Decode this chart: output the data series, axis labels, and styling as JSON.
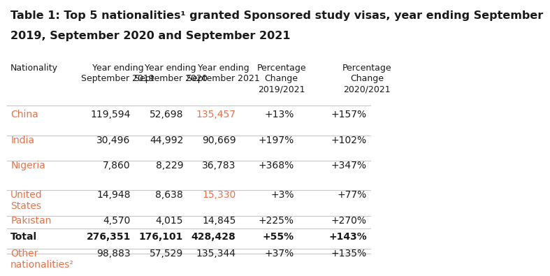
{
  "title_line1": "Table 1: Top 5 nationalities¹ granted Sponsored study visas, year ending September",
  "title_line2": "2019, September 2020 and September 2021",
  "hdr_texts": [
    "Nationality",
    "Year ending\nSeptember 2019",
    "Year ending\nSeptember 2020",
    "Year ending\nSeptember 2021",
    "Percentage\nChange\n2019/2021",
    "Percentage\nChange\n2020/2021"
  ],
  "rows": [
    {
      "nationality": "China",
      "sep2019": "119,594",
      "sep2020": "52,698",
      "sep2021": "135,457",
      "pct1921": "+13%",
      "pct2021": "+157%",
      "nat_color": "#e8734a",
      "sep2021_color": "#e8734a"
    },
    {
      "nationality": "India",
      "sep2019": "30,496",
      "sep2020": "44,992",
      "sep2021": "90,669",
      "pct1921": "+197%",
      "pct2021": "+102%",
      "nat_color": "#e8734a",
      "sep2021_color": "#1a1a1a"
    },
    {
      "nationality": "Nigeria",
      "sep2019": "7,860",
      "sep2020": "8,229",
      "sep2021": "36,783",
      "pct1921": "+368%",
      "pct2021": "+347%",
      "nat_color": "#e8734a",
      "sep2021_color": "#1a1a1a"
    },
    {
      "nationality": "United\nStates",
      "sep2019": "14,948",
      "sep2020": "8,638",
      "sep2021": "15,330",
      "pct1921": "+3%",
      "pct2021": "+77%",
      "nat_color": "#e8734a",
      "sep2021_color": "#e8734a"
    },
    {
      "nationality": "Pakistan",
      "sep2019": "4,570",
      "sep2020": "4,015",
      "sep2021": "14,845",
      "pct1921": "+225%",
      "pct2021": "+270%",
      "nat_color": "#e8734a",
      "sep2021_color": "#1a1a1a"
    },
    {
      "nationality": "Other\nnationalities²",
      "sep2019": "98,883",
      "sep2020": "57,529",
      "sep2021": "135,344",
      "pct1921": "+37%",
      "pct2021": "+135%",
      "nat_color": "#e8734a",
      "sep2021_color": "#1a1a1a"
    }
  ],
  "total_row": {
    "nationality": "Total",
    "sep2019": "276,351",
    "sep2020": "176,101",
    "sep2021": "428,428",
    "pct1921": "+55%",
    "pct2021": "+143%"
  },
  "bg_color": "#ffffff",
  "title_color": "#1a1a1a",
  "header_color": "#1a1a1a",
  "data_color": "#1a1a1a",
  "line_color": "#c8c8c8",
  "title_fontsize": 11.5,
  "header_fontsize": 9.0,
  "data_fontsize": 10.0
}
